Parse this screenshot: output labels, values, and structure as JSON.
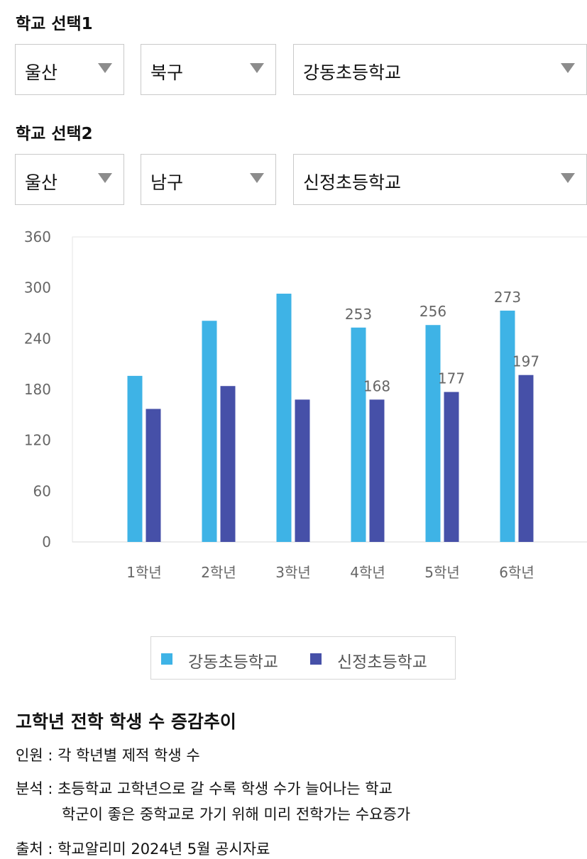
{
  "selector1": {
    "title": "학교 선택1",
    "region": "울산",
    "district": "북구",
    "school": "강동초등학교"
  },
  "selector2": {
    "title": "학교 선택2",
    "region": "울산",
    "district": "남구",
    "school": "신정초등학교"
  },
  "chart_data": {
    "type": "bar",
    "categories": [
      "1학년",
      "2학년",
      "3학년",
      "4학년",
      "5학년",
      "6학년"
    ],
    "series": [
      {
        "name": "강동초등학교",
        "color": "#3eb3e6",
        "values": [
          196,
          261,
          293,
          253,
          256,
          273
        ],
        "labels": [
          null,
          null,
          null,
          "253",
          "256",
          "273"
        ]
      },
      {
        "name": "신정초등학교",
        "color": "#4650a8",
        "values": [
          157,
          184,
          168,
          168,
          177,
          197
        ],
        "labels": [
          null,
          null,
          null,
          "168",
          "177",
          "197"
        ]
      }
    ],
    "ylim": [
      0,
      360
    ],
    "yticks": [
      "0",
      "60",
      "120",
      "180",
      "240",
      "300",
      "360"
    ],
    "grid": false,
    "legend": "bottom"
  },
  "notes": {
    "title": "고학년 전학 학생 수 증감추이",
    "line1": "인원 : 각 학년별 제적 학생 수",
    "line2": "분석 : 초등학교 고학년으로 갈 수록 학생 수가 늘어나는 학교",
    "line3": "학군이 좋은 중학교로 가기 위해 미리 전학가는 수요증가",
    "line4": "출처 : 학교알리미 2024년 5월 공시자료"
  }
}
